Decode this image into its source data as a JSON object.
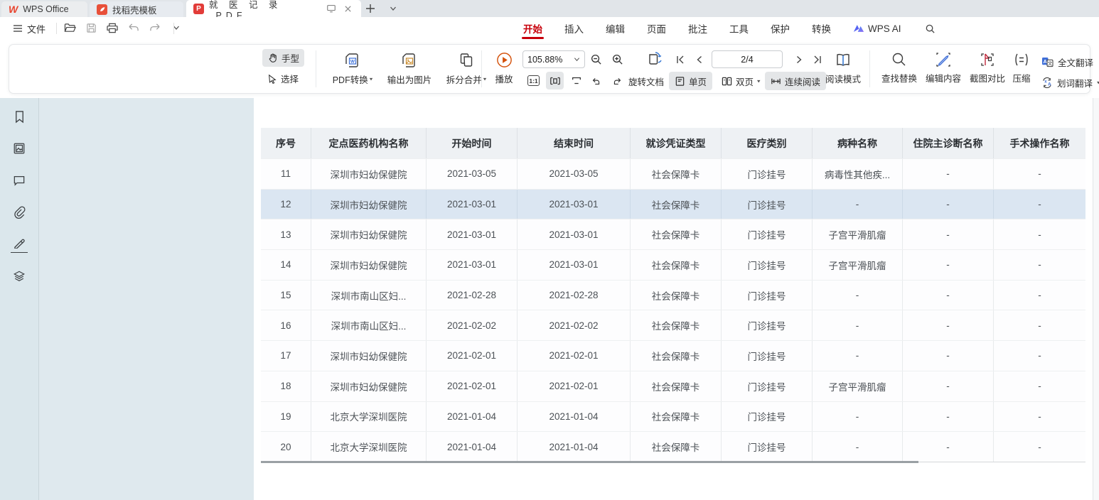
{
  "window": {
    "tabs": [
      {
        "label": "WPS Office"
      },
      {
        "label": "找稻壳模板"
      },
      {
        "label": "就 医 记 录 .PDF",
        "active": true
      }
    ]
  },
  "menubar": {
    "file_label": "文件",
    "ribbon_tabs": [
      "开始",
      "插入",
      "编辑",
      "页面",
      "批注",
      "工具",
      "保护",
      "转换"
    ],
    "wps_ai_label": "WPS AI"
  },
  "toolbar": {
    "hand_label": "手型",
    "select_label": "选择",
    "pdf_convert_label": "PDF转换",
    "export_image_label": "输出为图片",
    "split_merge_label": "拆分合并",
    "play_label": "播放",
    "zoom_value": "105.88%",
    "one_to_one_label": "1:1",
    "rotate_doc_label": "旋转文档",
    "page_indicator": "2/4",
    "single_page_label": "单页",
    "double_page_label": "双页",
    "continuous_read_label": "连续阅读",
    "read_mode_label": "阅读模式",
    "find_replace_label": "查找替换",
    "edit_content_label": "编辑内容",
    "screenshot_compare_label": "截图对比",
    "compress_label": "压缩",
    "full_translate_label": "全文翻译",
    "word_translate_label": "划词翻译"
  },
  "colors": {
    "ribbon_accent_red": "#c7000b",
    "row_highlight": "#dbe6f2",
    "selected_tool_bg": "#e4e6e8",
    "play_orange": "#d4510a",
    "edit_pencil_blue": "#3f6fd8",
    "pdf_icon_red": "#e23c39",
    "docer_icon_red": "#e8503a"
  },
  "table": {
    "headers": [
      "序号",
      "定点医药机构名称",
      "开始时间",
      "结束时间",
      "就诊凭证类型",
      "医疗类别",
      "病种名称",
      "住院主诊断名称",
      "手术操作名称"
    ],
    "rows": [
      {
        "highlighted": false,
        "cells": [
          "11",
          "深圳市妇幼保健院",
          "2021-03-05",
          "2021-03-05",
          "社会保障卡",
          "门诊挂号",
          "病毒性其他疾...",
          "-",
          "-"
        ]
      },
      {
        "highlighted": true,
        "cells": [
          "12",
          "深圳市妇幼保健院",
          "2021-03-01",
          "2021-03-01",
          "社会保障卡",
          "门诊挂号",
          "-",
          "-",
          "-"
        ]
      },
      {
        "highlighted": false,
        "cells": [
          "13",
          "深圳市妇幼保健院",
          "2021-03-01",
          "2021-03-01",
          "社会保障卡",
          "门诊挂号",
          "子宫平滑肌瘤",
          "-",
          "-"
        ]
      },
      {
        "highlighted": false,
        "cells": [
          "14",
          "深圳市妇幼保健院",
          "2021-03-01",
          "2021-03-01",
          "社会保障卡",
          "门诊挂号",
          "子宫平滑肌瘤",
          "-",
          "-"
        ]
      },
      {
        "highlighted": false,
        "cells": [
          "15",
          "深圳市南山区妇...",
          "2021-02-28",
          "2021-02-28",
          "社会保障卡",
          "门诊挂号",
          "-",
          "-",
          "-"
        ]
      },
      {
        "highlighted": false,
        "cells": [
          "16",
          "深圳市南山区妇...",
          "2021-02-02",
          "2021-02-02",
          "社会保障卡",
          "门诊挂号",
          "-",
          "-",
          "-"
        ]
      },
      {
        "highlighted": false,
        "cells": [
          "17",
          "深圳市妇幼保健院",
          "2021-02-01",
          "2021-02-01",
          "社会保障卡",
          "门诊挂号",
          "-",
          "-",
          "-"
        ]
      },
      {
        "highlighted": false,
        "cells": [
          "18",
          "深圳市妇幼保健院",
          "2021-02-01",
          "2021-02-01",
          "社会保障卡",
          "门诊挂号",
          "子宫平滑肌瘤",
          "-",
          "-"
        ]
      },
      {
        "highlighted": false,
        "cells": [
          "19",
          "北京大学深圳医院",
          "2021-01-04",
          "2021-01-04",
          "社会保障卡",
          "门诊挂号",
          "-",
          "-",
          "-"
        ]
      },
      {
        "highlighted": false,
        "cells": [
          "20",
          "北京大学深圳医院",
          "2021-01-04",
          "2021-01-04",
          "社会保障卡",
          "门诊挂号",
          "-",
          "-",
          "-"
        ]
      }
    ]
  }
}
